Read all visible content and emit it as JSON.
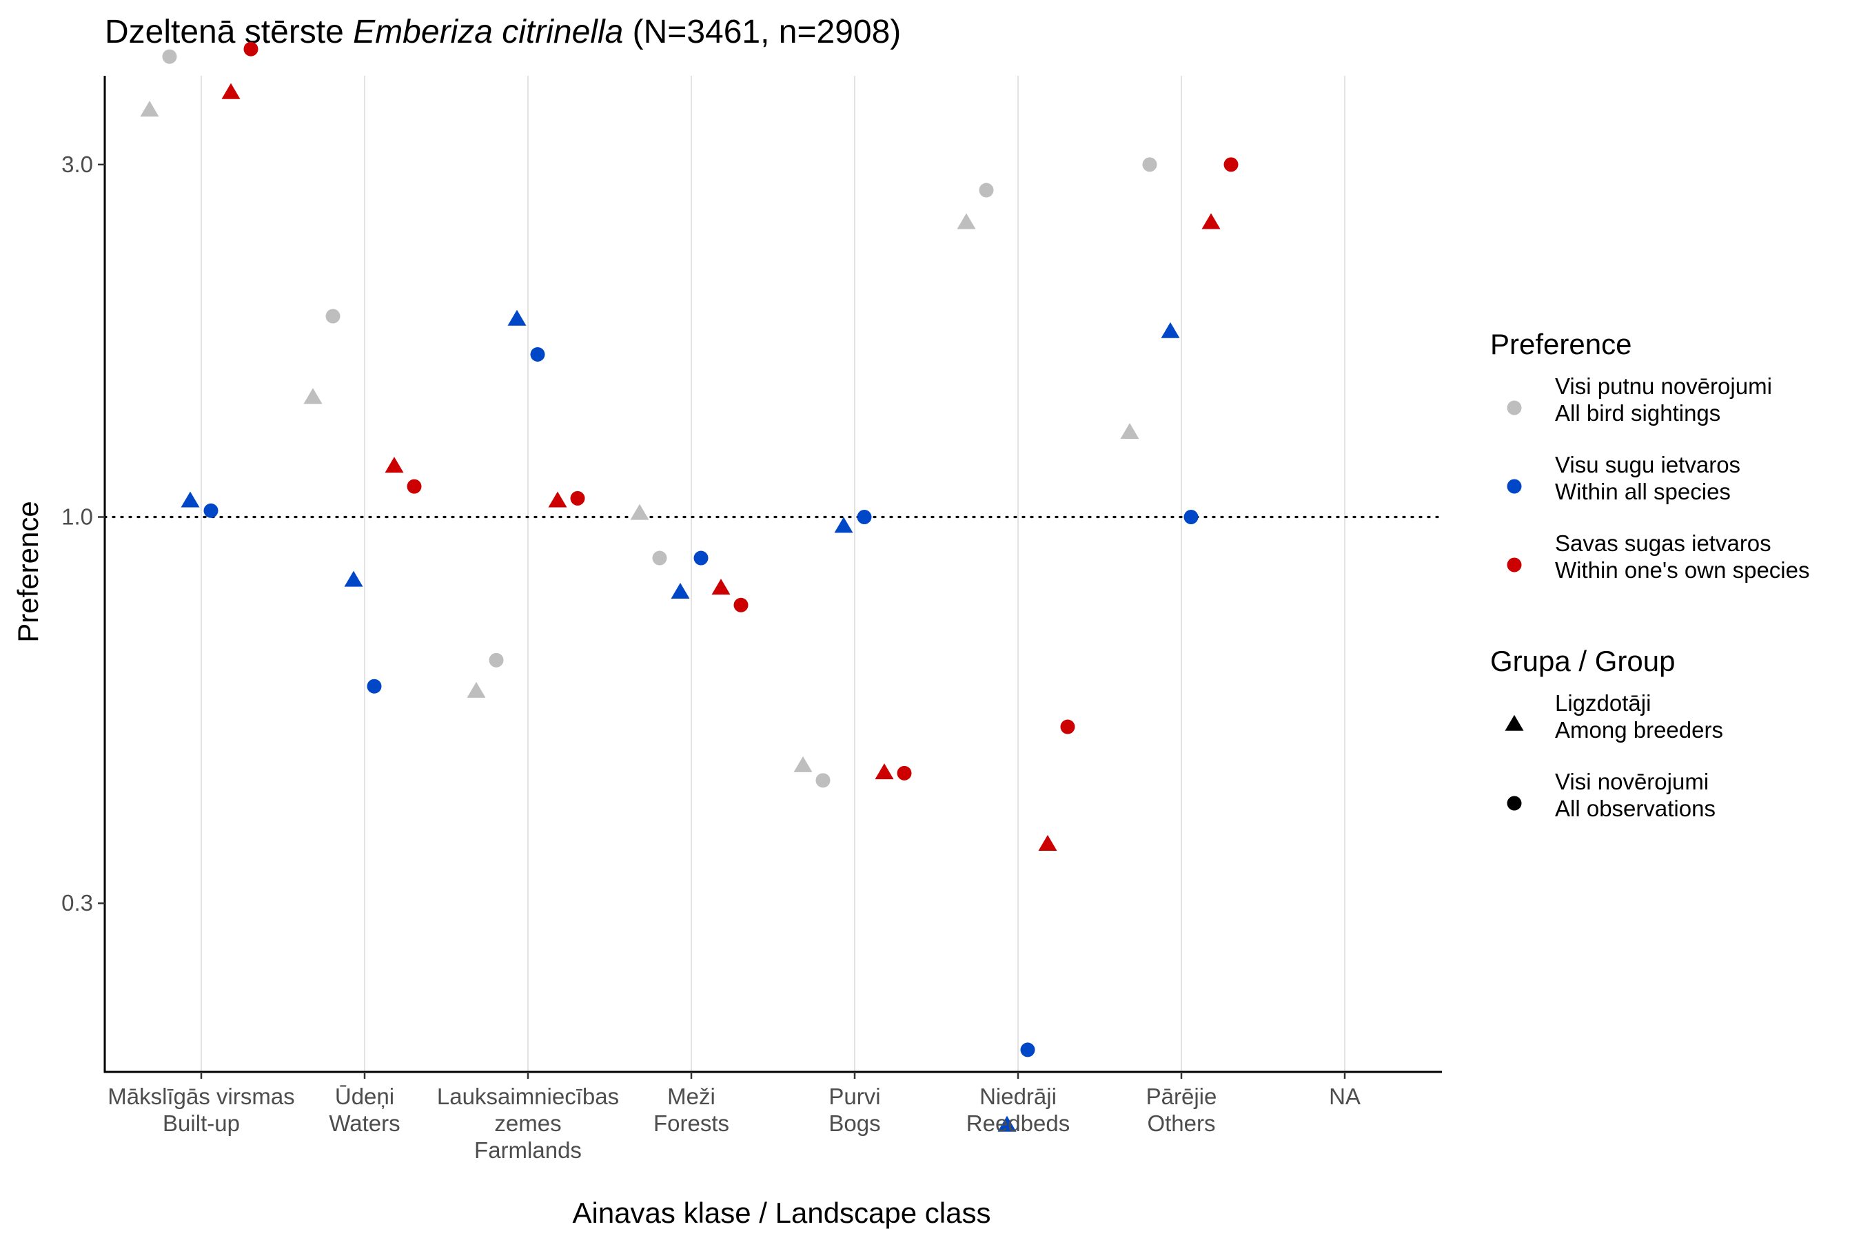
{
  "chart_data": {
    "type": "scatter",
    "title": {
      "prefix": "Dzeltenā stērste ",
      "italic": "Emberiza citrinella",
      "suffix": " (N=3461, n=2908)"
    },
    "xlabel": "Ainavas klase / Landscape class",
    "ylabel": "Preference",
    "y_scale": "log",
    "ylim": [
      0.13,
      5.0
    ],
    "y_ticks": [
      {
        "value": 0.3,
        "label": "0.3"
      },
      {
        "value": 1.0,
        "label": "1.0"
      },
      {
        "value": 3.0,
        "label": "3.0"
      }
    ],
    "reference_line": {
      "value": 1.0,
      "style": "dotted"
    },
    "grid": "vertical",
    "categories": [
      {
        "id": "builtup",
        "lines": [
          "Mākslīgās virsmas",
          "Built-up"
        ]
      },
      {
        "id": "waters",
        "lines": [
          "Ūdeņi",
          "Waters"
        ]
      },
      {
        "id": "farmlands",
        "lines": [
          "Lauksaimniecības",
          "zemes",
          "Farmlands"
        ]
      },
      {
        "id": "forests",
        "lines": [
          "Meži",
          "Forests"
        ]
      },
      {
        "id": "bogs",
        "lines": [
          "Purvi",
          "Bogs"
        ]
      },
      {
        "id": "reedbeds",
        "lines": [
          "Niedrāji",
          "Reedbeds"
        ]
      },
      {
        "id": "others",
        "lines": [
          "Pārējie",
          "Others"
        ]
      },
      {
        "id": "na",
        "lines": [
          "NA"
        ]
      }
    ],
    "series": [
      {
        "key": "all_bird",
        "color": "#bebebe",
        "legend": [
          "Visi putnu novērojumi",
          "All bird sightings"
        ]
      },
      {
        "key": "all_species",
        "color": "#0047c8",
        "legend": [
          "Visu sugu ietvaros",
          "Within all species"
        ]
      },
      {
        "key": "own_species",
        "color": "#cc0000",
        "legend": [
          "Savas sugas ietvaros",
          "Within one's own species"
        ]
      }
    ],
    "groups": [
      {
        "key": "breeders",
        "shape": "triangle",
        "legend": [
          "Ligzdotāji",
          "Among breeders"
        ]
      },
      {
        "key": "all_obs",
        "shape": "circle",
        "legend": [
          "Visi novērojumi",
          "All observations"
        ]
      }
    ],
    "legend_titles": {
      "preference": "Preference",
      "group": "Grupa / Group"
    },
    "legend_position": "right",
    "points": [
      {
        "category": "builtup",
        "series": "all_bird",
        "group": "breeders",
        "value": 3.55
      },
      {
        "category": "builtup",
        "series": "all_bird",
        "group": "all_obs",
        "value": 4.2
      },
      {
        "category": "builtup",
        "series": "all_species",
        "group": "breeders",
        "value": 1.05
      },
      {
        "category": "builtup",
        "series": "all_species",
        "group": "all_obs",
        "value": 1.02
      },
      {
        "category": "builtup",
        "series": "own_species",
        "group": "breeders",
        "value": 3.75
      },
      {
        "category": "builtup",
        "series": "own_species",
        "group": "all_obs",
        "value": 4.3
      },
      {
        "category": "waters",
        "series": "all_bird",
        "group": "breeders",
        "value": 1.45
      },
      {
        "category": "waters",
        "series": "all_bird",
        "group": "all_obs",
        "value": 1.87
      },
      {
        "category": "waters",
        "series": "all_species",
        "group": "breeders",
        "value": 0.82
      },
      {
        "category": "waters",
        "series": "all_species",
        "group": "all_obs",
        "value": 0.59
      },
      {
        "category": "waters",
        "series": "own_species",
        "group": "breeders",
        "value": 1.17
      },
      {
        "category": "waters",
        "series": "own_species",
        "group": "all_obs",
        "value": 1.1
      },
      {
        "category": "farmlands",
        "series": "all_bird",
        "group": "breeders",
        "value": 0.58
      },
      {
        "category": "farmlands",
        "series": "all_bird",
        "group": "all_obs",
        "value": 0.64
      },
      {
        "category": "farmlands",
        "series": "all_species",
        "group": "breeders",
        "value": 1.85
      },
      {
        "category": "farmlands",
        "series": "all_species",
        "group": "all_obs",
        "value": 1.66
      },
      {
        "category": "farmlands",
        "series": "own_species",
        "group": "breeders",
        "value": 1.05
      },
      {
        "category": "farmlands",
        "series": "own_species",
        "group": "all_obs",
        "value": 1.06
      },
      {
        "category": "forests",
        "series": "all_bird",
        "group": "breeders",
        "value": 1.01
      },
      {
        "category": "forests",
        "series": "all_bird",
        "group": "all_obs",
        "value": 0.88
      },
      {
        "category": "forests",
        "series": "all_species",
        "group": "breeders",
        "value": 0.79
      },
      {
        "category": "forests",
        "series": "all_species",
        "group": "all_obs",
        "value": 0.88
      },
      {
        "category": "forests",
        "series": "own_species",
        "group": "breeders",
        "value": 0.8
      },
      {
        "category": "forests",
        "series": "own_species",
        "group": "all_obs",
        "value": 0.76
      },
      {
        "category": "bogs",
        "series": "all_bird",
        "group": "breeders",
        "value": 0.46
      },
      {
        "category": "bogs",
        "series": "all_bird",
        "group": "all_obs",
        "value": 0.44
      },
      {
        "category": "bogs",
        "series": "all_species",
        "group": "breeders",
        "value": 0.97
      },
      {
        "category": "bogs",
        "series": "all_species",
        "group": "all_obs",
        "value": 1.0
      },
      {
        "category": "bogs",
        "series": "own_species",
        "group": "breeders",
        "value": 0.45
      },
      {
        "category": "bogs",
        "series": "own_species",
        "group": "all_obs",
        "value": 0.45
      },
      {
        "category": "reedbeds",
        "series": "all_bird",
        "group": "breeders",
        "value": 2.5
      },
      {
        "category": "reedbeds",
        "series": "all_bird",
        "group": "all_obs",
        "value": 2.77
      },
      {
        "category": "reedbeds",
        "series": "all_species",
        "group": "breeders",
        "value": 0.15
      },
      {
        "category": "reedbeds",
        "series": "all_species",
        "group": "all_obs",
        "value": 0.19
      },
      {
        "category": "reedbeds",
        "series": "own_species",
        "group": "breeders",
        "value": 0.36
      },
      {
        "category": "reedbeds",
        "series": "own_species",
        "group": "all_obs",
        "value": 0.52
      },
      {
        "category": "others",
        "series": "all_bird",
        "group": "breeders",
        "value": 1.3
      },
      {
        "category": "others",
        "series": "all_bird",
        "group": "all_obs",
        "value": 3.0
      },
      {
        "category": "others",
        "series": "all_species",
        "group": "breeders",
        "value": 1.78
      },
      {
        "category": "others",
        "series": "all_species",
        "group": "all_obs",
        "value": 1.0
      },
      {
        "category": "others",
        "series": "own_species",
        "group": "breeders",
        "value": 2.5
      },
      {
        "category": "others",
        "series": "own_species",
        "group": "all_obs",
        "value": 3.0
      }
    ]
  }
}
